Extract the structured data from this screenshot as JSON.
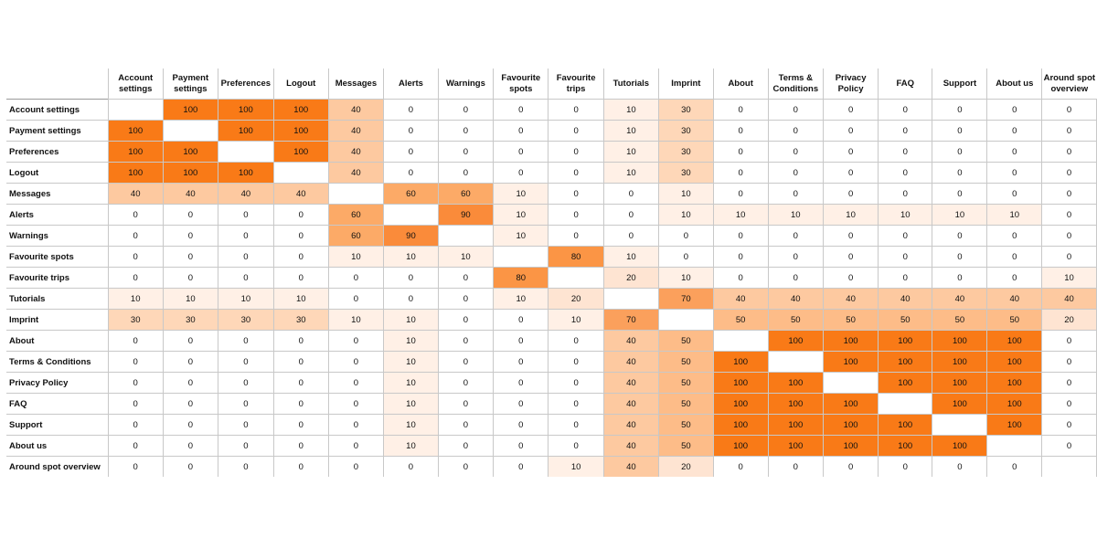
{
  "chart_data": {
    "type": "heatmap",
    "labels": [
      "Account settings",
      "Payment settings",
      "Preferences",
      "Logout",
      "Messages",
      "Alerts",
      "Warnings",
      "Favourite spots",
      "Favourite trips",
      "Tutorials",
      "Imprint",
      "About",
      "Terms & Conditions",
      "Privacy Policy",
      "FAQ",
      "Support",
      "About us",
      "Around spot overview"
    ],
    "column_labels": [
      [
        "Account",
        "settings"
      ],
      [
        "Payment",
        "settings"
      ],
      [
        "Preferences"
      ],
      [
        "Logout"
      ],
      [
        "Messages"
      ],
      [
        "Alerts"
      ],
      [
        "Warnings"
      ],
      [
        "Favourite",
        "spots"
      ],
      [
        "Favourite",
        "trips"
      ],
      [
        "Tutorials"
      ],
      [
        "Imprint"
      ],
      [
        "About"
      ],
      [
        "Terms &",
        "Conditions"
      ],
      [
        "Privacy",
        "Policy"
      ],
      [
        "FAQ"
      ],
      [
        "Support"
      ],
      [
        "About us"
      ],
      [
        "Around spot",
        "overview"
      ]
    ],
    "values": [
      [
        null,
        100,
        100,
        100,
        40,
        0,
        0,
        0,
        0,
        10,
        30,
        0,
        0,
        0,
        0,
        0,
        0,
        0
      ],
      [
        100,
        null,
        100,
        100,
        40,
        0,
        0,
        0,
        0,
        10,
        30,
        0,
        0,
        0,
        0,
        0,
        0,
        0
      ],
      [
        100,
        100,
        null,
        100,
        40,
        0,
        0,
        0,
        0,
        10,
        30,
        0,
        0,
        0,
        0,
        0,
        0,
        0
      ],
      [
        100,
        100,
        100,
        null,
        40,
        0,
        0,
        0,
        0,
        10,
        30,
        0,
        0,
        0,
        0,
        0,
        0,
        0
      ],
      [
        40,
        40,
        40,
        40,
        null,
        60,
        60,
        10,
        0,
        0,
        10,
        0,
        0,
        0,
        0,
        0,
        0,
        0
      ],
      [
        0,
        0,
        0,
        0,
        60,
        null,
        90,
        10,
        0,
        0,
        10,
        10,
        10,
        10,
        10,
        10,
        10,
        0
      ],
      [
        0,
        0,
        0,
        0,
        60,
        90,
        null,
        10,
        0,
        0,
        0,
        0,
        0,
        0,
        0,
        0,
        0,
        0
      ],
      [
        0,
        0,
        0,
        0,
        10,
        10,
        10,
        null,
        80,
        10,
        0,
        0,
        0,
        0,
        0,
        0,
        0,
        0
      ],
      [
        0,
        0,
        0,
        0,
        0,
        0,
        0,
        80,
        null,
        20,
        10,
        0,
        0,
        0,
        0,
        0,
        0,
        10
      ],
      [
        10,
        10,
        10,
        10,
        0,
        0,
        0,
        10,
        20,
        null,
        70,
        40,
        40,
        40,
        40,
        40,
        40,
        40
      ],
      [
        30,
        30,
        30,
        30,
        10,
        10,
        0,
        0,
        10,
        70,
        null,
        50,
        50,
        50,
        50,
        50,
        50,
        20
      ],
      [
        0,
        0,
        0,
        0,
        0,
        10,
        0,
        0,
        0,
        40,
        50,
        null,
        100,
        100,
        100,
        100,
        100,
        0
      ],
      [
        0,
        0,
        0,
        0,
        0,
        10,
        0,
        0,
        0,
        40,
        50,
        100,
        null,
        100,
        100,
        100,
        100,
        0
      ],
      [
        0,
        0,
        0,
        0,
        0,
        10,
        0,
        0,
        0,
        40,
        50,
        100,
        100,
        null,
        100,
        100,
        100,
        0
      ],
      [
        0,
        0,
        0,
        0,
        0,
        10,
        0,
        0,
        0,
        40,
        50,
        100,
        100,
        100,
        null,
        100,
        100,
        0
      ],
      [
        0,
        0,
        0,
        0,
        0,
        10,
        0,
        0,
        0,
        40,
        50,
        100,
        100,
        100,
        100,
        null,
        100,
        0
      ],
      [
        0,
        0,
        0,
        0,
        0,
        10,
        0,
        0,
        0,
        40,
        50,
        100,
        100,
        100,
        100,
        100,
        null,
        0
      ],
      [
        0,
        0,
        0,
        0,
        0,
        0,
        0,
        0,
        10,
        40,
        20,
        0,
        0,
        0,
        0,
        0,
        0,
        null
      ]
    ],
    "color_scale": {
      "0": "#ffffff",
      "10": "#fff0e6",
      "20": "#fee4d2",
      "30": "#fed7b8",
      "40": "#fdc9a0",
      "50": "#fdbc88",
      "60": "#fcaa67",
      "70": "#fba05c",
      "80": "#fb9545",
      "90": "#fa8b3a",
      "100": "#f97a17"
    },
    "diagonal_color": "#ffffff"
  }
}
